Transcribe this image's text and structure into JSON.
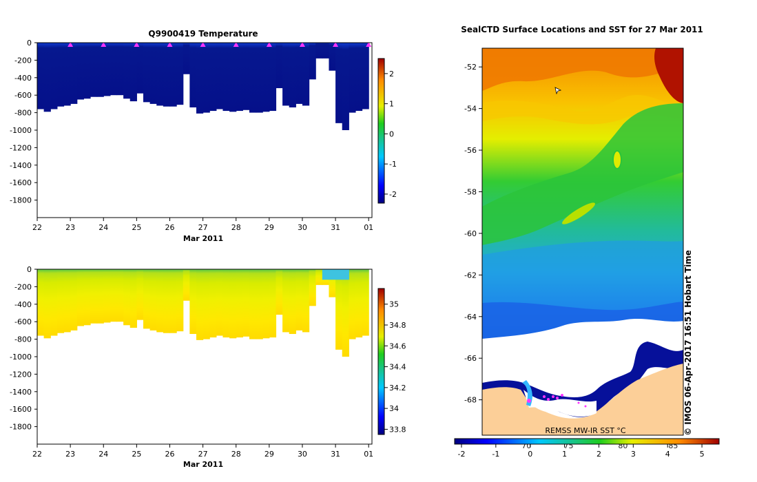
{
  "chart_data": [
    {
      "type": "heatmap",
      "title": "Q9900419  Temperature",
      "xlabel": "Mar 2011",
      "x_ticks": [
        "22",
        "23",
        "24",
        "25",
        "26",
        "27",
        "28",
        "29",
        "30",
        "31",
        "01"
      ],
      "x_range": [
        22,
        32.1
      ],
      "y_ticks": [
        "0",
        "-200",
        "-400",
        "-600",
        "-800",
        "-1000",
        "-1200",
        "-1400",
        "-1600",
        "-1800"
      ],
      "ylim": [
        -2000,
        0
      ],
      "colorbar_ticks": [
        "-2",
        "-1",
        "0",
        "1",
        "2"
      ],
      "colorbar_range": [
        -2.3,
        2.5
      ],
      "surface_profile_markers": [
        23,
        24,
        25,
        26,
        27,
        28,
        29,
        30,
        31,
        32
      ],
      "profile_days": [
        22.1,
        22.3,
        22.5,
        22.7,
        22.9,
        23.1,
        23.3,
        23.5,
        23.7,
        23.9,
        24.1,
        24.3,
        24.5,
        24.7,
        24.9,
        25.1,
        25.3,
        25.5,
        25.7,
        25.9,
        26.1,
        26.3,
        26.5,
        26.7,
        26.9,
        27.1,
        27.3,
        27.5,
        27.7,
        27.9,
        28.1,
        28.3,
        28.5,
        28.7,
        28.9,
        29.1,
        29.3,
        29.5,
        29.7,
        29.9,
        30.1,
        30.3,
        30.5,
        30.7,
        30.9,
        31.1,
        31.3,
        31.5,
        31.7,
        31.9
      ],
      "profile_max_depth_m": [
        760,
        790,
        760,
        730,
        720,
        700,
        650,
        640,
        620,
        620,
        610,
        600,
        600,
        640,
        670,
        580,
        680,
        700,
        720,
        730,
        730,
        710,
        360,
        740,
        810,
        800,
        780,
        760,
        780,
        790,
        780,
        770,
        800,
        800,
        790,
        780,
        520,
        720,
        740,
        700,
        720,
        420,
        180,
        180,
        320,
        920,
        1000,
        800,
        780,
        760
      ],
      "temperature_pattern": "approximately -1.8 to -1.5 °C (dark blue) throughout; slightly warmer (about -1 °C) in the top ~50 m"
    },
    {
      "type": "heatmap",
      "title": "",
      "xlabel": "Mar 2011",
      "x_ticks": [
        "22",
        "23",
        "24",
        "25",
        "26",
        "27",
        "28",
        "29",
        "30",
        "31",
        "01"
      ],
      "x_range": [
        22,
        32.1
      ],
      "y_ticks": [
        "0",
        "-200",
        "-400",
        "-600",
        "-800",
        "-1000",
        "-1200",
        "-1400",
        "-1600",
        "-1800"
      ],
      "ylim": [
        -2000,
        0
      ],
      "colorbar_ticks": [
        "35",
        "34.8",
        "34.6",
        "34.4",
        "34.2",
        "34",
        "33.8"
      ],
      "colorbar_range": [
        33.75,
        35.15
      ],
      "profile_days": [
        22.1,
        22.3,
        22.5,
        22.7,
        22.9,
        23.1,
        23.3,
        23.5,
        23.7,
        23.9,
        24.1,
        24.3,
        24.5,
        24.7,
        24.9,
        25.1,
        25.3,
        25.5,
        25.7,
        25.9,
        26.1,
        26.3,
        26.5,
        26.7,
        26.9,
        27.1,
        27.3,
        27.5,
        27.7,
        27.9,
        28.1,
        28.3,
        28.5,
        28.7,
        28.9,
        29.1,
        29.3,
        29.5,
        29.7,
        29.9,
        30.1,
        30.3,
        30.5,
        30.7,
        30.9,
        31.1,
        31.3,
        31.5,
        31.7,
        31.9
      ],
      "profile_max_depth_m": [
        760,
        790,
        760,
        730,
        720,
        700,
        650,
        640,
        620,
        620,
        610,
        600,
        600,
        640,
        670,
        580,
        680,
        700,
        720,
        730,
        730,
        710,
        360,
        740,
        810,
        800,
        780,
        760,
        780,
        790,
        780,
        770,
        800,
        800,
        790,
        780,
        520,
        720,
        740,
        700,
        720,
        420,
        180,
        180,
        320,
        920,
        1000,
        800,
        780,
        760
      ],
      "salinity_pattern": "about 34.3 at the surface increasing to about 34.7 at 600-800 m; fresher (about 34.1) near the surface around 31 Mar"
    },
    {
      "type": "heatmap",
      "title": "SealCTD Surface Locations and SST for 27 Mar 2011",
      "ylim": [
        -69.7,
        -51.1
      ],
      "y_ticks": [
        "-52",
        "-54",
        "-56",
        "-58",
        "-60",
        "-62",
        "-64",
        "-66",
        "-68"
      ],
      "x_ticks": [
        "70",
        "75",
        "80",
        "85"
      ],
      "colorbar_ticks": [
        "-2",
        "-1",
        "0",
        "1",
        "2",
        "3",
        "4",
        "5"
      ],
      "colorbar_range": [
        -2.2,
        5.5
      ],
      "colorbar_label": "REMSS MW-IR SST °C",
      "side_label": "© IMOS 06-Apr-2017 16:51 Hobart Time",
      "sst_pattern": "about 3-5 °C in the north grading to about -1.5 °C near -65; warmest (red) in the northeast corner; sea ice (white) south of about -65; Antarctic land (tan) south of about -68"
    }
  ]
}
